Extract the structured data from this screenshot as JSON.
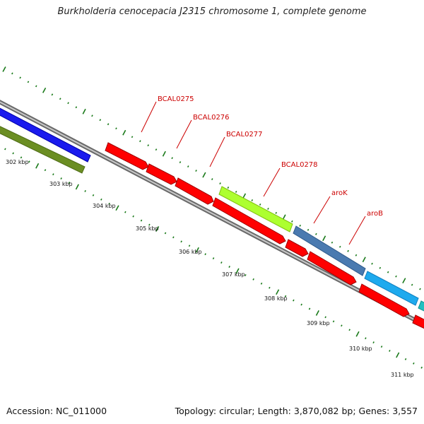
{
  "title": "Burkholderia cenocepacia J2315 chromosome 1, complete genome",
  "footer": {
    "accession": "Accession: NC_011000",
    "summary": "Topology: circular; Length: 3,870,082 bp; Genes: 3,557"
  },
  "colors": {
    "backbone": "#8a8a8a",
    "tick_mark": "#1a7a1a",
    "label_line": "#cc0000",
    "forward_gene": "#ff0000",
    "reverse_gene": "#ff0000"
  },
  "tick_labels": [
    "302 kbp",
    "303 kbp",
    "304 kbp",
    "305 kbp",
    "306 kbp",
    "307 kbp",
    "308 kbp",
    "309 kbp",
    "310 kbp",
    "311 kbp"
  ],
  "gene_labels": [
    "BCAL0275",
    "BCAL0276",
    "BCAL0277",
    "BCAL0278",
    "aroK",
    "aroB"
  ],
  "genes": [
    {
      "name": "outer-gene-1",
      "color": "#1a1aee",
      "track": "outer"
    },
    {
      "name": "inner-gene-1",
      "color": "#6b8e23",
      "track": "inner"
    },
    {
      "name": "BCAL0275",
      "color": "#ff0000",
      "track": "inner"
    },
    {
      "name": "BCAL0276",
      "color": "#ff0000",
      "track": "inner"
    },
    {
      "name": "BCAL0277",
      "color": "#ff0000",
      "track": "inner"
    },
    {
      "name": "BCAL0278",
      "color": "#adff2f",
      "track": "outer"
    },
    {
      "name": "BCAL0278-inner",
      "color": "#ff0000",
      "track": "inner"
    },
    {
      "name": "aroK",
      "color": "#4a7ab0",
      "track": "outer"
    },
    {
      "name": "aroK-inner",
      "color": "#ff0000",
      "track": "inner"
    },
    {
      "name": "aroB",
      "color": "#1eaaee",
      "track": "outer"
    },
    {
      "name": "aroB-inner",
      "color": "#ff0000",
      "track": "inner"
    },
    {
      "name": "next-gene",
      "color": "#20c0c0",
      "track": "outer"
    },
    {
      "name": "next-gene-inner",
      "color": "#ff0000",
      "track": "inner"
    }
  ]
}
